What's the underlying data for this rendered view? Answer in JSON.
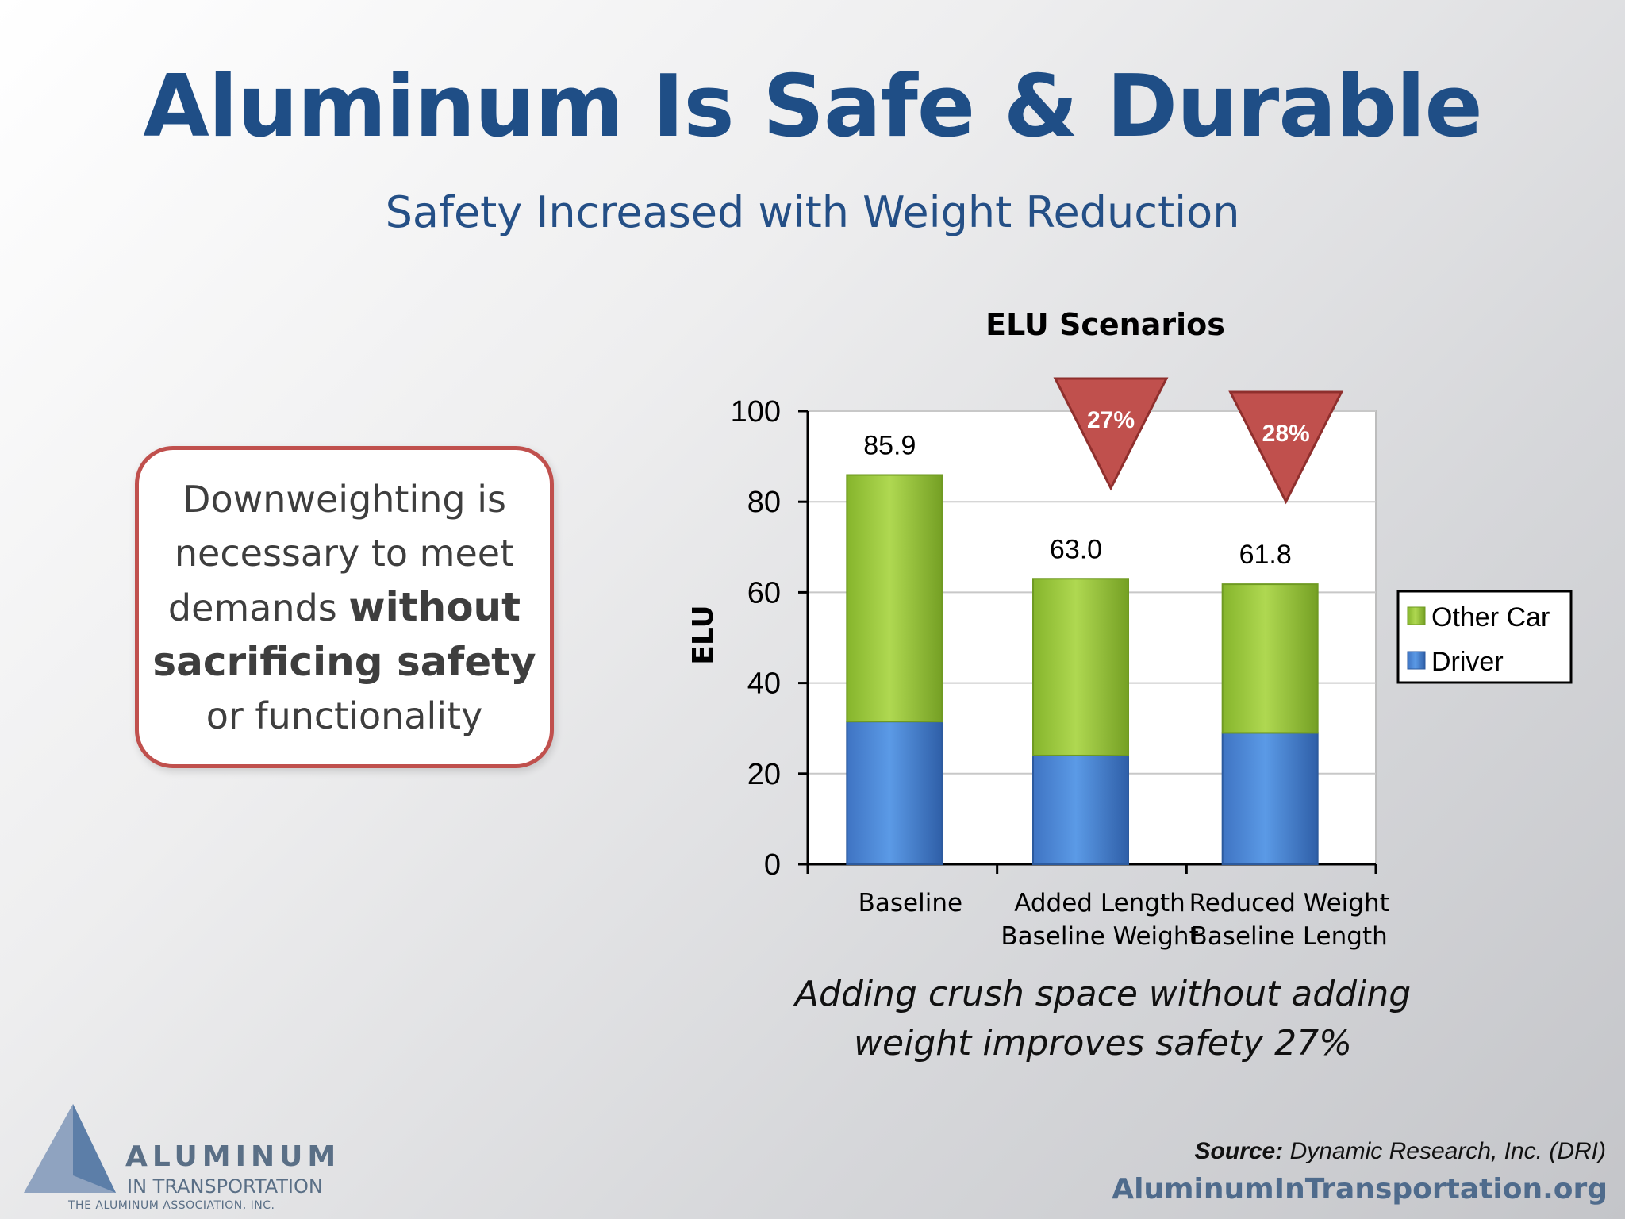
{
  "slide": {
    "title": "Aluminum Is Safe & Durable",
    "subtitle": "Safety Increased with Weight Reduction"
  },
  "callout": {
    "line1": "Downweighting is",
    "line2": "necessary to meet",
    "line3_plain": "demands ",
    "line3_bold": "without",
    "line4_bold": "sacrificing safety",
    "line5": "or functionality"
  },
  "caption": {
    "line1": "Adding crush space without adding",
    "line2": "weight improves safety 27%"
  },
  "source": {
    "label": "Source:",
    "text": " Dynamic Research, Inc. (DRI)"
  },
  "site_url": "AluminumInTransportation.org",
  "logo": {
    "line1": "ALUMINUM",
    "line2": "IN TRANSPORTATION",
    "line3": "THE ALUMINUM ASSOCIATION, INC."
  },
  "chart_data": {
    "type": "bar",
    "stacked": true,
    "title": "ELU Scenarios",
    "ylabel": "ELU",
    "xlabel": "",
    "ylim": [
      0,
      100
    ],
    "yticks": [
      0,
      20,
      40,
      60,
      80,
      100
    ],
    "categories": [
      [
        "Baseline"
      ],
      [
        "Added Length",
        "Baseline Weight"
      ],
      [
        "Reduced Weight",
        "Baseline Length"
      ]
    ],
    "series": [
      {
        "name": "Driver",
        "values": [
          31.5,
          24.0,
          29.0
        ],
        "color": "#4a86d8"
      },
      {
        "name": "Other Car",
        "values": [
          54.4,
          39.0,
          32.8
        ],
        "color": "#9ccc3c"
      }
    ],
    "totals": [
      "85.9",
      "63.0",
      "61.8"
    ],
    "reductions": [
      null,
      "27%",
      "28%"
    ],
    "legend_position": "right",
    "grid": true
  },
  "colors": {
    "title": "#1f4e86",
    "callout_border": "#c0504d",
    "reduction_marker": "#c0504d"
  }
}
